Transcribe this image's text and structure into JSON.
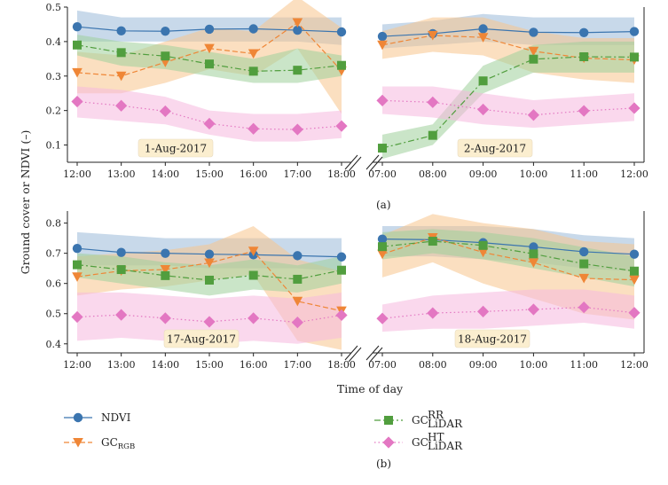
{
  "figure": {
    "ylabel": "Ground cover or NDVI (–)",
    "xlabel": "Time of day",
    "caption_a": "(a)",
    "caption_b": "(b)"
  },
  "legend": [
    {
      "key": "ndvi",
      "main": "NDVI",
      "sub": "",
      "sup": ""
    },
    {
      "key": "rgb",
      "main": "GC",
      "sub": "RGB",
      "sup": ""
    },
    {
      "key": "rr",
      "main": "GC",
      "sub": "LiDAR",
      "sup": "RR"
    },
    {
      "key": "ht",
      "main": "GC",
      "sub": "LiDAR",
      "sup": "HT"
    }
  ],
  "styles": {
    "ndvi": {
      "color": "#3b75af",
      "band": "#9ab9d9",
      "marker": "circle",
      "dash": ""
    },
    "rgb": {
      "color": "#ef8636",
      "band": "#f7c48d",
      "marker": "triangle",
      "dash": "6,3"
    },
    "rr": {
      "color": "#519e3e",
      "band": "#9fd09a",
      "marker": "square",
      "dash": "7,3,2,3"
    },
    "ht": {
      "color": "#e377c2",
      "band": "#f5b8df",
      "marker": "diamond",
      "dash": "1.5,3"
    }
  },
  "chart_data": [
    {
      "id": "p1",
      "type": "line",
      "title": "",
      "date": "1-Aug-2017",
      "x": [
        "12:00",
        "13:00",
        "14:00",
        "15:00",
        "16:00",
        "17:00",
        "18:00"
      ],
      "ylim": [
        0.05,
        0.5
      ],
      "yticks": [
        "0.1",
        "0.2",
        "0.3",
        "0.4",
        "0.5"
      ],
      "grid": false,
      "series": [
        {
          "key": "ndvi",
          "name": "NDVI",
          "values": [
            0.443,
            0.431,
            0.43,
            0.436,
            0.437,
            0.433,
            0.428
          ],
          "lower": [
            0.4,
            0.4,
            0.4,
            0.4,
            0.4,
            0.4,
            0.39
          ],
          "upper": [
            0.49,
            0.47,
            0.47,
            0.47,
            0.47,
            0.47,
            0.47
          ]
        },
        {
          "key": "rgb",
          "name": "GC_RGB",
          "values": [
            0.31,
            0.3,
            0.34,
            0.38,
            0.365,
            0.455,
            0.315
          ],
          "lower": [
            0.25,
            0.25,
            0.28,
            0.32,
            0.3,
            0.38,
            0.19
          ],
          "upper": [
            0.37,
            0.36,
            0.4,
            0.44,
            0.43,
            0.53,
            0.44
          ]
        },
        {
          "key": "rr",
          "name": "GC_LiDAR_RR",
          "values": [
            0.39,
            0.368,
            0.358,
            0.335,
            0.314,
            0.317,
            0.331
          ],
          "lower": [
            0.36,
            0.33,
            0.32,
            0.3,
            0.28,
            0.28,
            0.3
          ],
          "upper": [
            0.42,
            0.4,
            0.39,
            0.37,
            0.35,
            0.38,
            0.36
          ]
        },
        {
          "key": "ht",
          "name": "GC_LiDAR_HT",
          "values": [
            0.226,
            0.214,
            0.198,
            0.162,
            0.147,
            0.145,
            0.155
          ],
          "lower": [
            0.18,
            0.17,
            0.16,
            0.13,
            0.11,
            0.11,
            0.12
          ],
          "upper": [
            0.27,
            0.26,
            0.24,
            0.2,
            0.19,
            0.19,
            0.2
          ]
        }
      ]
    },
    {
      "id": "p2",
      "type": "line",
      "title": "",
      "date": "2-Aug-2017",
      "x": [
        "07:00",
        "08:00",
        "09:00",
        "10:00",
        "11:00",
        "12:00"
      ],
      "ylim": [
        0.05,
        0.5
      ],
      "yticks": [],
      "grid": false,
      "series": [
        {
          "key": "ndvi",
          "name": "NDVI",
          "values": [
            0.415,
            0.423,
            0.437,
            0.427,
            0.426,
            0.429
          ],
          "lower": [
            0.38,
            0.39,
            0.4,
            0.39,
            0.39,
            0.39
          ],
          "upper": [
            0.45,
            0.46,
            0.48,
            0.47,
            0.47,
            0.47
          ]
        },
        {
          "key": "rgb",
          "name": "GC_RGB",
          "values": [
            0.39,
            0.418,
            0.412,
            0.372,
            0.352,
            0.347
          ],
          "lower": [
            0.35,
            0.37,
            0.36,
            0.31,
            0.29,
            0.28
          ],
          "upper": [
            0.43,
            0.47,
            0.47,
            0.43,
            0.41,
            0.41
          ]
        },
        {
          "key": "rr",
          "name": "GC_LiDAR_RR",
          "values": [
            0.091,
            0.128,
            0.286,
            0.349,
            0.356,
            0.355
          ],
          "lower": [
            0.06,
            0.1,
            0.25,
            0.31,
            0.31,
            0.31
          ],
          "upper": [
            0.13,
            0.16,
            0.33,
            0.39,
            0.4,
            0.4
          ]
        },
        {
          "key": "ht",
          "name": "GC_LiDAR_HT",
          "values": [
            0.229,
            0.224,
            0.203,
            0.187,
            0.199,
            0.207
          ],
          "lower": [
            0.19,
            0.18,
            0.16,
            0.15,
            0.16,
            0.17
          ],
          "upper": [
            0.27,
            0.27,
            0.25,
            0.23,
            0.24,
            0.25
          ]
        }
      ]
    },
    {
      "id": "p3",
      "type": "line",
      "title": "",
      "date": "17-Aug-2017",
      "x": [
        "12:00",
        "13:00",
        "14:00",
        "15:00",
        "16:00",
        "17:00",
        "18:00"
      ],
      "ylim": [
        0.37,
        0.84
      ],
      "yticks": [
        "0.4",
        "0.5",
        "0.6",
        "0.7",
        "0.8"
      ],
      "grid": false,
      "series": [
        {
          "key": "ndvi",
          "name": "NDVI",
          "values": [
            0.716,
            0.703,
            0.7,
            0.697,
            0.695,
            0.692,
            0.688
          ],
          "lower": [
            0.66,
            0.66,
            0.66,
            0.65,
            0.65,
            0.65,
            0.64
          ],
          "upper": [
            0.77,
            0.76,
            0.75,
            0.75,
            0.75,
            0.75,
            0.75
          ]
        },
        {
          "key": "rgb",
          "name": "GC_RGB",
          "values": [
            0.622,
            0.642,
            0.646,
            0.668,
            0.707,
            0.541,
            0.509
          ],
          "lower": [
            0.56,
            0.58,
            0.59,
            0.61,
            0.63,
            0.41,
            0.38
          ],
          "upper": [
            0.69,
            0.7,
            0.71,
            0.73,
            0.79,
            0.68,
            0.64
          ]
        },
        {
          "key": "rr",
          "name": "GC_LiDAR_RR",
          "values": [
            0.662,
            0.646,
            0.626,
            0.611,
            0.627,
            0.614,
            0.644
          ],
          "lower": [
            0.62,
            0.6,
            0.58,
            0.56,
            0.58,
            0.57,
            0.6
          ],
          "upper": [
            0.7,
            0.69,
            0.67,
            0.66,
            0.68,
            0.66,
            0.69
          ]
        },
        {
          "key": "ht",
          "name": "GC_LiDAR_HT",
          "values": [
            0.489,
            0.496,
            0.485,
            0.473,
            0.485,
            0.471,
            0.495
          ],
          "lower": [
            0.41,
            0.42,
            0.41,
            0.4,
            0.41,
            0.4,
            0.42
          ],
          "upper": [
            0.57,
            0.57,
            0.56,
            0.55,
            0.56,
            0.55,
            0.57
          ]
        }
      ]
    },
    {
      "id": "p4",
      "type": "line",
      "title": "",
      "date": "18-Aug-2017",
      "x": [
        "07:00",
        "08:00",
        "09:00",
        "10:00",
        "11:00",
        "12:00"
      ],
      "ylim": [
        0.37,
        0.84
      ],
      "yticks": [],
      "grid": false,
      "series": [
        {
          "key": "ndvi",
          "name": "NDVI",
          "values": [
            0.747,
            0.745,
            0.735,
            0.721,
            0.705,
            0.697
          ],
          "lower": [
            0.69,
            0.69,
            0.68,
            0.67,
            0.65,
            0.64
          ],
          "upper": [
            0.79,
            0.79,
            0.79,
            0.78,
            0.76,
            0.75
          ]
        },
        {
          "key": "rgb",
          "name": "GC_RGB",
          "values": [
            0.697,
            0.752,
            0.703,
            0.669,
            0.617,
            0.612
          ],
          "lower": [
            0.62,
            0.67,
            0.6,
            0.55,
            0.5,
            0.48
          ],
          "upper": [
            0.76,
            0.83,
            0.8,
            0.78,
            0.74,
            0.73
          ]
        },
        {
          "key": "rr",
          "name": "GC_LiDAR_RR",
          "values": [
            0.722,
            0.74,
            0.726,
            0.698,
            0.665,
            0.641
          ],
          "lower": [
            0.68,
            0.7,
            0.68,
            0.65,
            0.62,
            0.59
          ],
          "upper": [
            0.77,
            0.78,
            0.77,
            0.75,
            0.72,
            0.69
          ]
        },
        {
          "key": "ht",
          "name": "GC_LiDAR_HT",
          "values": [
            0.484,
            0.502,
            0.507,
            0.514,
            0.521,
            0.503
          ],
          "lower": [
            0.44,
            0.45,
            0.45,
            0.46,
            0.47,
            0.45
          ],
          "upper": [
            0.53,
            0.56,
            0.57,
            0.58,
            0.58,
            0.56
          ]
        }
      ]
    }
  ]
}
